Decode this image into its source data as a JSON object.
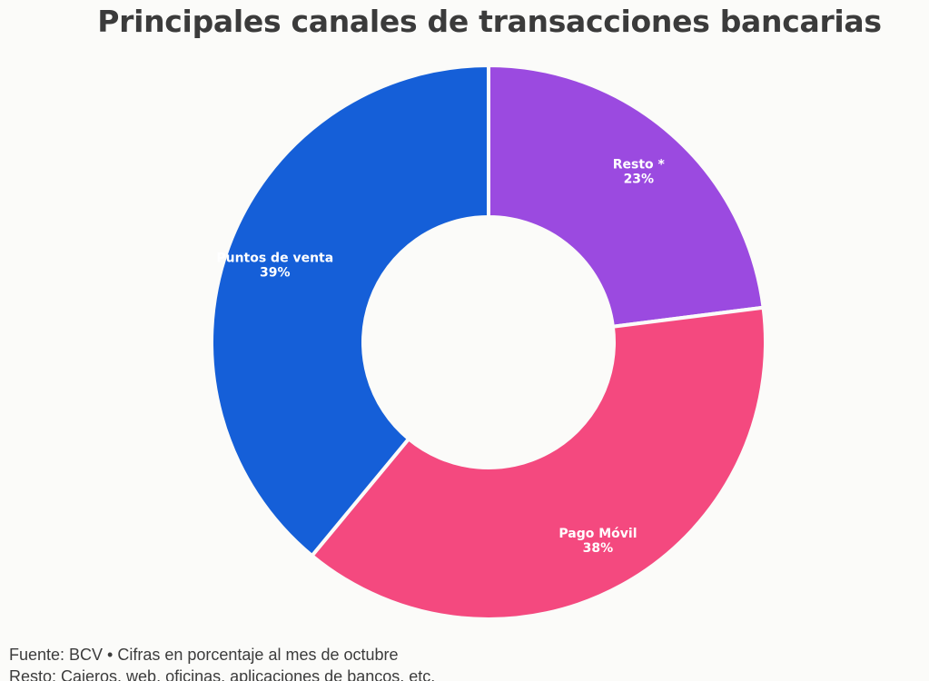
{
  "chart_data": {
    "type": "pie",
    "variant": "donut",
    "title": "Principales canales de transacciones bancarias",
    "slices": [
      {
        "label": "Resto *",
        "value": 23,
        "value_label": "23%",
        "color": "#9b4ae0"
      },
      {
        "label": "Pago Móvil",
        "value": 38,
        "value_label": "38%",
        "color": "#f4497f"
      },
      {
        "label": "Puntos de venta",
        "value": 39,
        "value_label": "39%",
        "color": "#155fd8"
      }
    ]
  },
  "footnotes": {
    "source": "Fuente: BCV • Cifras en porcentaje al mes de octubre",
    "note": "Resto: Cajeros, web, oficinas, aplicaciones de bancos, etc."
  }
}
